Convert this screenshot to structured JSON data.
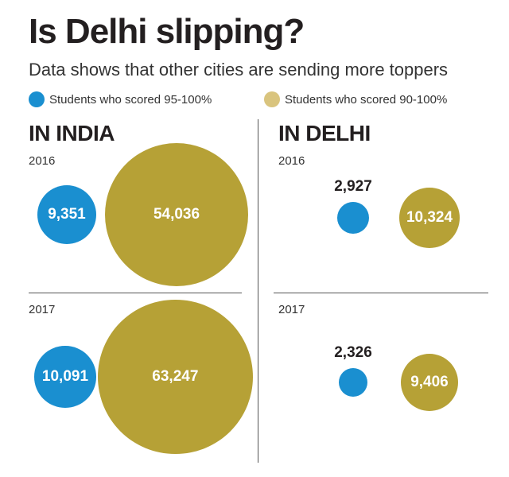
{
  "header": {
    "title": "Is Delhi slipping?",
    "subtitle": "Data shows that other cities are sending more toppers"
  },
  "legend": [
    {
      "label": "Students who scored 95-100%",
      "color": "#1a8fd0"
    },
    {
      "label": "Students who scored 90-100%",
      "color": "#d9c47e"
    }
  ],
  "colors": {
    "blue": "#1a8fd0",
    "gold": "#b6a136"
  },
  "sections": {
    "india": {
      "heading": "IN INDIA",
      "year_2016": "2016",
      "year_2017": "2017"
    },
    "delhi": {
      "heading": "IN DELHI",
      "year_2016": "2016",
      "year_2017": "2017"
    }
  },
  "chart_data": [
    {
      "type": "bubble",
      "title": "IN INDIA",
      "categories": [
        "2016",
        "2017"
      ],
      "series": [
        {
          "name": "Students who scored 95-100%",
          "values": [
            9351,
            10091
          ],
          "labels": [
            "9,351",
            "10,091"
          ]
        },
        {
          "name": "Students who scored 90-100%",
          "values": [
            54036,
            63247
          ],
          "labels": [
            "54,036",
            "63,247"
          ]
        }
      ]
    },
    {
      "type": "bubble",
      "title": "IN DELHI",
      "categories": [
        "2016",
        "2017"
      ],
      "series": [
        {
          "name": "Students who scored 95-100%",
          "values": [
            2927,
            2326
          ],
          "labels": [
            "2,927",
            "2,326"
          ]
        },
        {
          "name": "Students who scored 90-100%",
          "values": [
            10324,
            9406
          ],
          "labels": [
            "10,324",
            "9,406"
          ]
        }
      ]
    }
  ]
}
